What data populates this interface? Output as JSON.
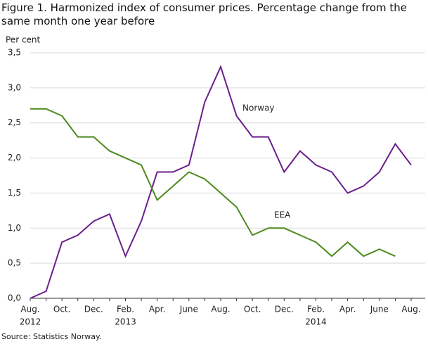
{
  "chart_data": {
    "type": "line",
    "title": "Figure 1. Harmonized index of consumer prices. Percentage change from the same month one year before",
    "y_label": "Per cent",
    "source": "Source: Statistics Norway.",
    "categories": [
      "Aug.",
      null,
      "Oct.",
      null,
      "Dec.",
      null,
      "Feb.",
      null,
      "Apr.",
      null,
      "June",
      null,
      "Aug.",
      null,
      "Oct.",
      null,
      "Dec.",
      null,
      "Feb.",
      null,
      "Apr.",
      null,
      "June",
      null,
      "Aug."
    ],
    "category_years": [
      "2012",
      null,
      null,
      null,
      null,
      null,
      "2013",
      null,
      null,
      null,
      null,
      null,
      null,
      null,
      null,
      null,
      null,
      null,
      "2014",
      null,
      null,
      null,
      null,
      null,
      null
    ],
    "series": [
      {
        "name": "Norway",
        "color": "#6b1f8c",
        "values": [
          0.0,
          0.1,
          0.8,
          0.9,
          1.1,
          1.2,
          0.6,
          1.1,
          1.8,
          1.8,
          1.9,
          2.8,
          3.3,
          2.6,
          2.3,
          2.3,
          1.8,
          2.1,
          1.9,
          1.8,
          1.5,
          1.6,
          1.8,
          2.2,
          1.9
        ]
      },
      {
        "name": "EEA",
        "color": "#4e8a1e",
        "values": [
          2.7,
          2.7,
          2.6,
          2.3,
          2.3,
          2.1,
          2.0,
          1.9,
          1.4,
          1.6,
          1.8,
          1.7,
          1.5,
          1.3,
          0.9,
          1.0,
          1.0,
          0.9,
          0.8,
          0.6,
          0.8,
          0.6,
          0.7,
          0.6,
          null
        ]
      }
    ],
    "ylim": [
      0,
      3.5
    ],
    "yticks": [
      {
        "value": 0,
        "label": "0,0"
      },
      {
        "value": 0.5,
        "label": "0,5"
      },
      {
        "value": 1,
        "label": "1,0"
      },
      {
        "value": 1.5,
        "label": "1,5"
      },
      {
        "value": 2,
        "label": "2,0"
      },
      {
        "value": 2.5,
        "label": "2,5"
      },
      {
        "value": 3,
        "label": "3,0"
      },
      {
        "value": 3.5,
        "label": "3,5"
      }
    ],
    "grid": true
  }
}
